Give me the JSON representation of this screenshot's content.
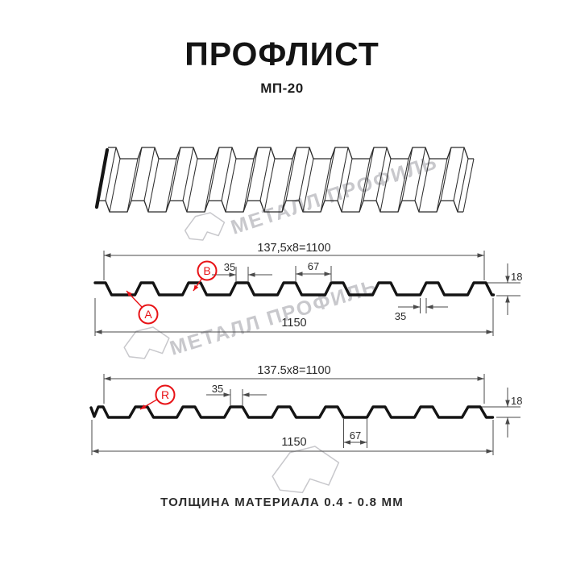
{
  "header": {
    "title": "ПРОФЛИСТ",
    "subtitle": "МП-20"
  },
  "footer": {
    "thickness_note": "ТОЛЩИНА МАТЕРИАЛА 0.4 - 0.8 ММ"
  },
  "watermark": {
    "text": "МЕТАЛЛ ПРОФИЛЬ"
  },
  "colors": {
    "accent_red": "#e81216",
    "line_dark": "#141414",
    "dim_gray": "#4a4a4a",
    "sheet_line": "#2a2a2a",
    "watermark_gray": "#c8c8cc"
  },
  "profile_top": {
    "dim_pitch_total": "137,5x8=1100",
    "dim_rib_top": "35",
    "dim_valley": "67",
    "dim_height": "18",
    "dim_rib_bottom": "35",
    "dim_overall": "1150",
    "label_a": "A",
    "label_b": "B"
  },
  "profile_bottom": {
    "dim_pitch_total": "137.5x8=1100",
    "dim_rib_top": "35",
    "dim_valley": "67",
    "dim_height": "18",
    "dim_overall": "1150",
    "label_r": "R"
  }
}
